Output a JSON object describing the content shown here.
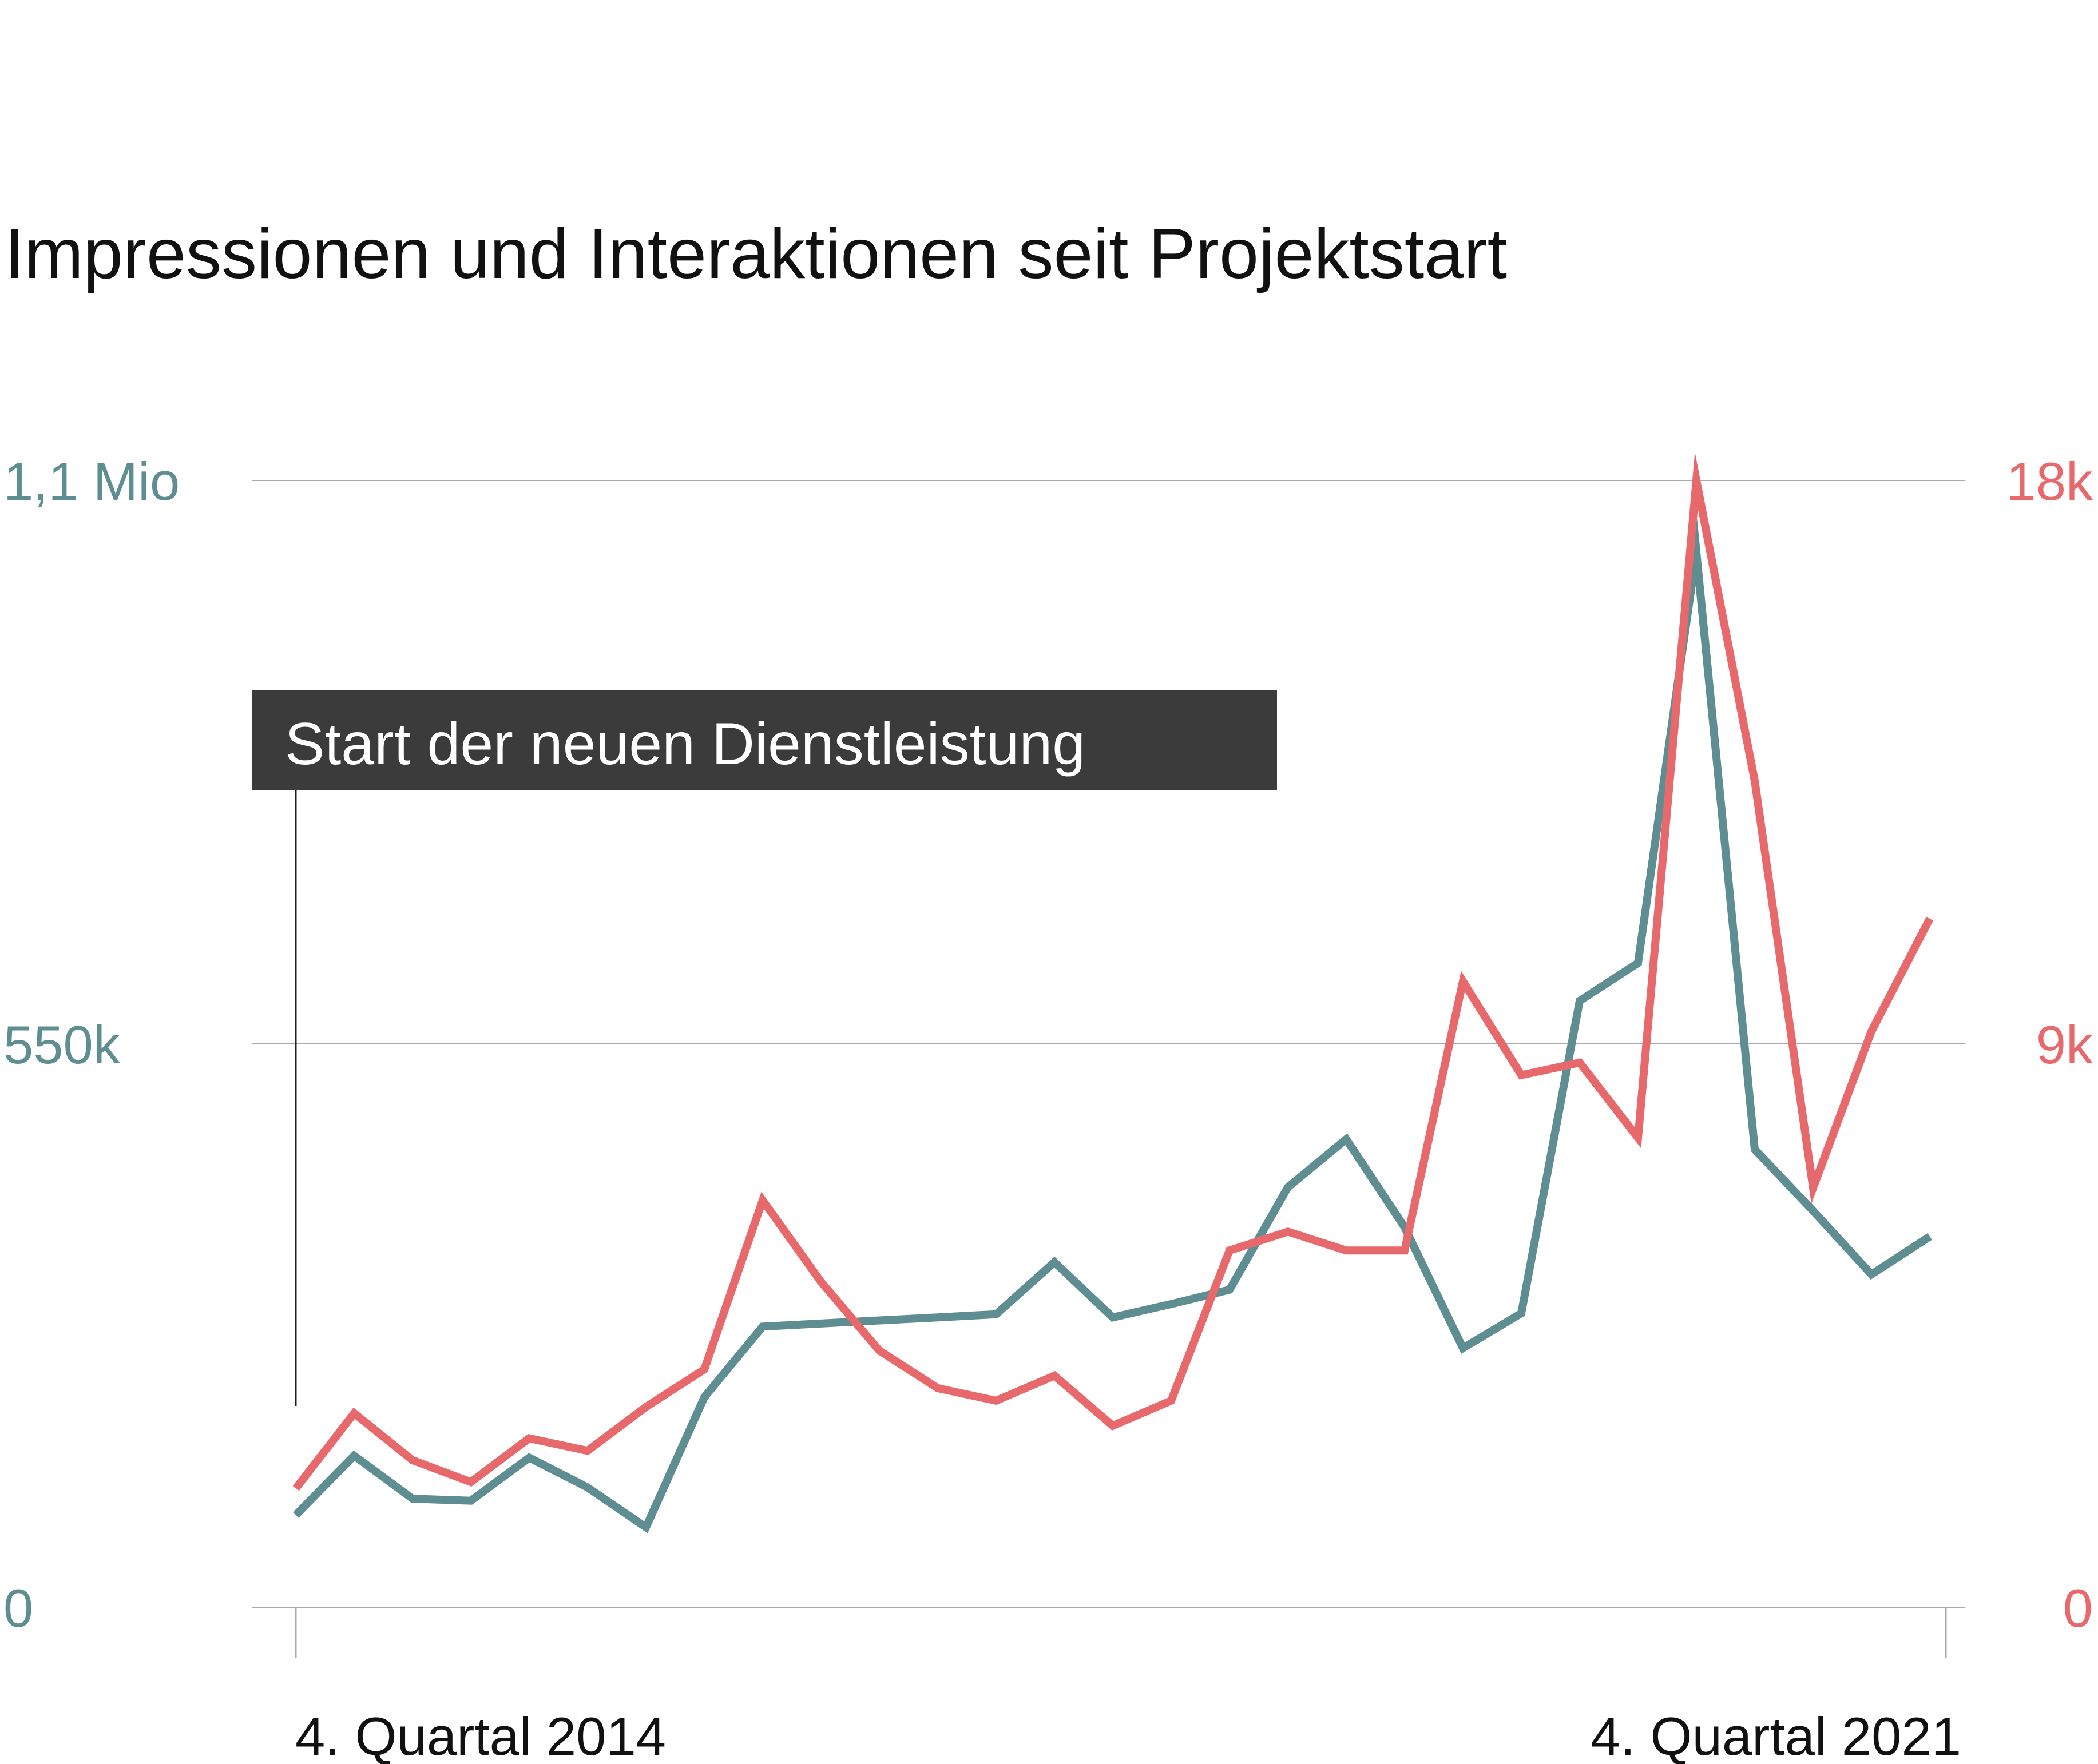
{
  "colors": {
    "impressions": "#5f8e92",
    "interactions": "#e8696c",
    "grid": "#aaaaaa",
    "annotation_bg": "#3b3b3b",
    "text": "#111111"
  },
  "chart_data": {
    "type": "line",
    "title": "Impressionen und Interaktionen seit Projektstart",
    "x_axis": {
      "tick_labels": [
        "4. Quartal 2014",
        "4. Quartal 2021"
      ]
    },
    "y_axis_left": {
      "ylim": [
        0,
        1100000
      ],
      "tick_values": [
        0,
        550000,
        1100000
      ],
      "tick_labels": [
        "0",
        "550k",
        "1,1 Mio"
      ]
    },
    "y_axis_right": {
      "ylim": [
        0,
        18000
      ],
      "tick_values": [
        0,
        9000,
        18000
      ],
      "tick_labels": [
        "0",
        "9k",
        "18k"
      ]
    },
    "grid": true,
    "annotation": {
      "label": "Start der neuen Dienstleistung",
      "quarter_index": 0
    },
    "series": [
      {
        "axis": "left",
        "color_key": "impressions",
        "values": [
          90000,
          148000,
          106000,
          104000,
          146000,
          117000,
          78000,
          205000,
          274000,
          277000,
          280000,
          283000,
          286000,
          337000,
          283000,
          296000,
          310000,
          410000,
          457000,
          371000,
          253000,
          287000,
          592000,
          629000,
          1030000,
          447000,
          387000,
          325000,
          362000
        ]
      },
      {
        "axis": "right",
        "color_key": "interactions",
        "values": [
          1900,
          3100,
          2350,
          2000,
          2700,
          2500,
          3200,
          3800,
          6500,
          5200,
          4100,
          3500,
          3300,
          3700,
          2900,
          3300,
          5700,
          6000,
          5700,
          5700,
          10000,
          8500,
          8700,
          7500,
          18000,
          13200,
          6700,
          9200,
          11000
        ]
      }
    ]
  }
}
